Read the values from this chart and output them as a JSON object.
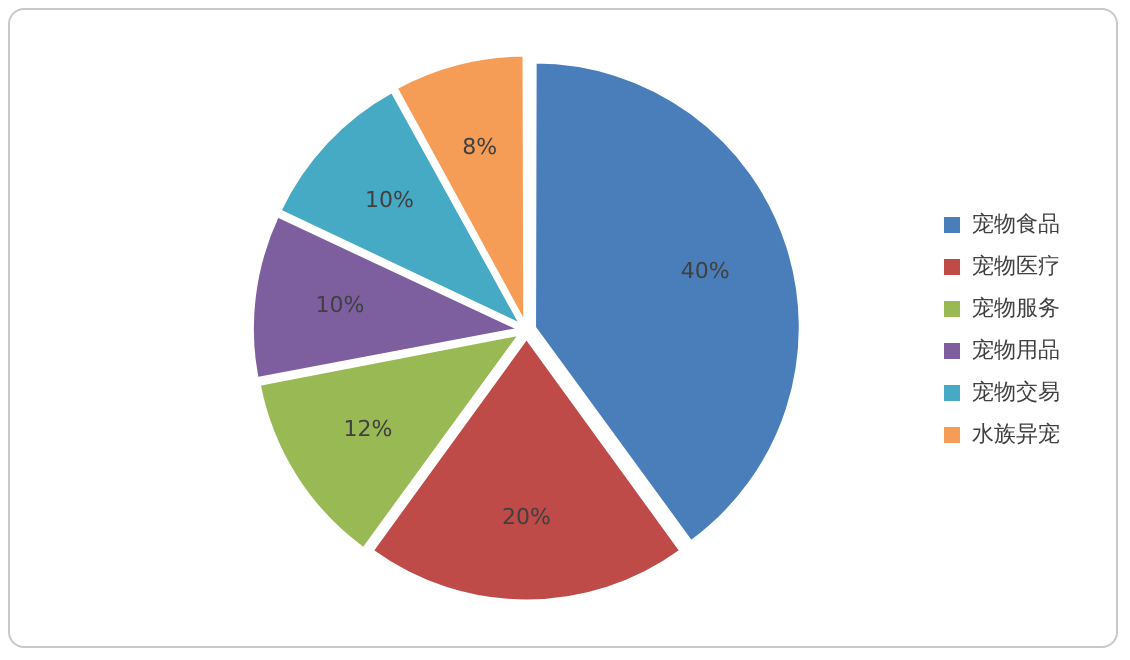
{
  "chart_data": {
    "type": "pie",
    "categories": [
      "宠物食品",
      "宠物医疗",
      "宠物服务",
      "宠物用品",
      "宠物交易",
      "水族异宠"
    ],
    "values": [
      40,
      20,
      12,
      10,
      10,
      8
    ],
    "colors": [
      "#4a7ebb",
      "#be4b48",
      "#98b954",
      "#7d5fa0",
      "#46aac5",
      "#f59d56"
    ],
    "value_labels": [
      "40%",
      "20%",
      "12%",
      "10%",
      "10%",
      "8%"
    ],
    "legend": "right"
  }
}
